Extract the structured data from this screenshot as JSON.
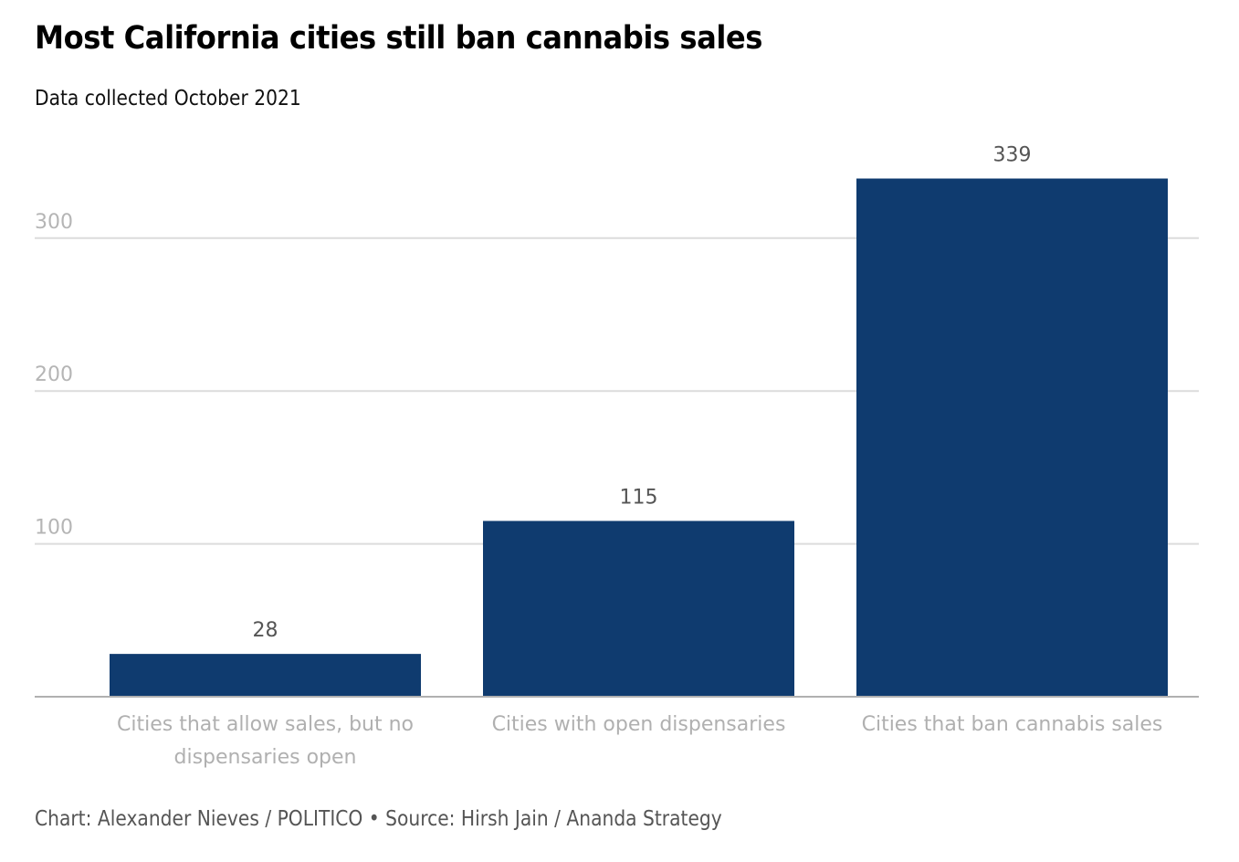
{
  "title": "Most California cities still ban cannabis sales",
  "subtitle": "Data collected October 2021",
  "footer": "Chart: Alexander Nieves / POLITICO • Source: Hirsh Jain / Ananda Strategy",
  "colors": {
    "bar": "#0f3b6f",
    "grid": "#dcdcdc",
    "axis": "#b0b0b0"
  },
  "chart_data": {
    "type": "bar",
    "title": "Most California cities still ban cannabis sales",
    "subtitle": "Data collected October 2021",
    "categories": [
      [
        "Cities that allow sales, but no",
        "dispensaries open"
      ],
      [
        "Cities with open dispensaries"
      ],
      [
        "Cities that ban cannabis sales"
      ]
    ],
    "values": [
      28,
      115,
      339
    ],
    "xlabel": "",
    "ylabel": "",
    "ylim": [
      0,
      339
    ],
    "yticks": [
      100,
      200,
      300
    ],
    "grid": true,
    "data_labels": true,
    "legend": "none"
  }
}
